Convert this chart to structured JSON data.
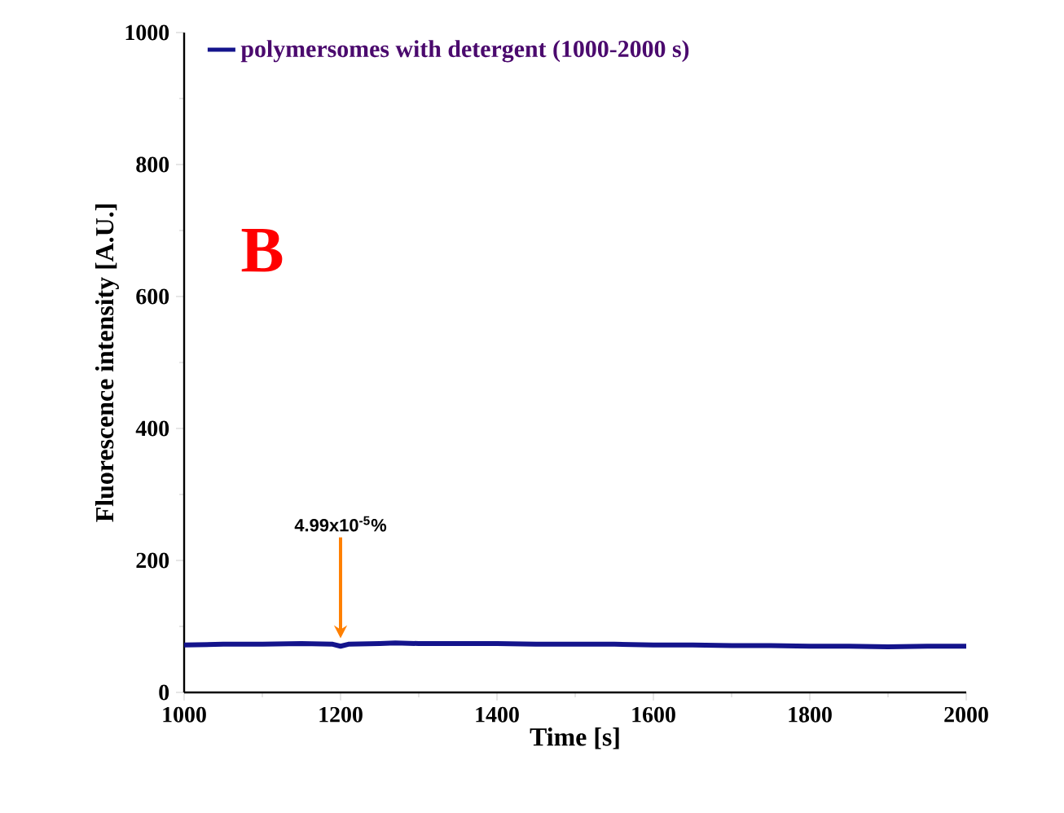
{
  "chart_data": {
    "type": "line",
    "xlabel": "Time [s]",
    "ylabel": "Fluorescence intensity [A.U.]",
    "x": [
      1000,
      1050,
      1100,
      1150,
      1190,
      1200,
      1210,
      1250,
      1270,
      1300,
      1350,
      1400,
      1450,
      1500,
      1550,
      1600,
      1650,
      1700,
      1750,
      1800,
      1850,
      1900,
      1950,
      2000
    ],
    "series": [
      {
        "name": "polymersomes with detergent (1000-2000 s)",
        "color": "#14148c",
        "values": [
          72,
          73,
          73,
          74,
          73,
          70,
          73,
          74,
          75,
          74,
          74,
          74,
          73,
          73,
          73,
          72,
          72,
          71,
          71,
          70,
          70,
          69,
          70,
          70
        ]
      }
    ],
    "xlim": [
      1000,
      2000
    ],
    "ylim": [
      0,
      1000
    ],
    "xticks": [
      1000,
      1200,
      1400,
      1600,
      1800,
      2000
    ],
    "yticks": [
      0,
      200,
      400,
      600,
      800,
      1000
    ],
    "legend": "top left",
    "marker": "none",
    "annotations": [
      "B",
      {
        "text": "4.99x10$^{-5}$%",
        "x": 1200,
        "y": 72
      }
    ]
  }
}
